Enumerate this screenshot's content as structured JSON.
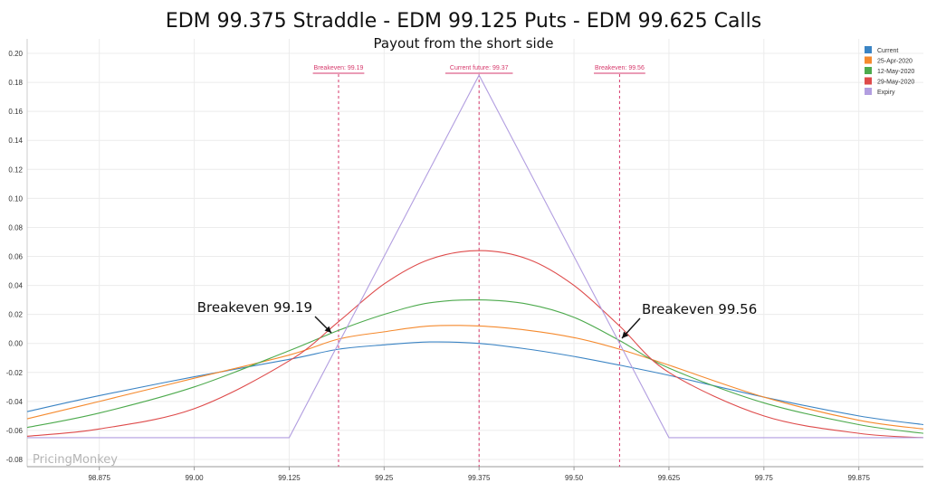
{
  "chart_data": {
    "type": "line",
    "title": "EDM 99.375 Straddle - EDM 99.125 Puts - EDM 99.625 Calls",
    "subtitle": "Payout from the short side",
    "xlim": [
      98.78,
      99.96
    ],
    "ylim": [
      -0.085,
      0.21
    ],
    "x_ticks": [
      "98.875",
      "99.00",
      "99.125",
      "99.25",
      "99.375",
      "99.50",
      "99.625",
      "99.75",
      "99.875"
    ],
    "y_ticks": [
      "0.20",
      "0.18",
      "0.16",
      "0.14",
      "0.12",
      "0.10",
      "0.08",
      "0.06",
      "0.04",
      "0.02",
      "0.00",
      "-0.02",
      "-0.04",
      "-0.06",
      "-0.08"
    ],
    "grid": true,
    "legend_position": "top-right",
    "series": [
      {
        "name": "Current",
        "color": "#3b84c4",
        "x": [
          98.78,
          98.875,
          99.0,
          99.125,
          99.19,
          99.25,
          99.31,
          99.375,
          99.44,
          99.5,
          99.56,
          99.625,
          99.75,
          99.875,
          99.96
        ],
        "y": [
          -0.047,
          -0.036,
          -0.023,
          -0.011,
          -0.004,
          -0.001,
          0.001,
          0.0,
          -0.004,
          -0.009,
          -0.015,
          -0.022,
          -0.037,
          -0.05,
          -0.056
        ]
      },
      {
        "name": "25-Apr-2020",
        "color": "#f58a2e",
        "x": [
          98.78,
          98.875,
          99.0,
          99.125,
          99.19,
          99.25,
          99.31,
          99.375,
          99.44,
          99.5,
          99.56,
          99.625,
          99.75,
          99.875,
          99.96
        ],
        "y": [
          -0.052,
          -0.04,
          -0.024,
          -0.008,
          0.003,
          0.008,
          0.012,
          0.012,
          0.009,
          0.004,
          -0.004,
          -0.015,
          -0.037,
          -0.053,
          -0.059
        ]
      },
      {
        "name": "12-May-2020",
        "color": "#4daa4d",
        "x": [
          98.78,
          98.875,
          99.0,
          99.125,
          99.19,
          99.25,
          99.31,
          99.375,
          99.44,
          99.5,
          99.56,
          99.625,
          99.75,
          99.875,
          99.96
        ],
        "y": [
          -0.058,
          -0.048,
          -0.03,
          -0.005,
          0.009,
          0.02,
          0.028,
          0.03,
          0.027,
          0.018,
          0.002,
          -0.017,
          -0.041,
          -0.056,
          -0.062
        ]
      },
      {
        "name": "29-May-2020",
        "color": "#de4a4a",
        "x": [
          98.78,
          98.875,
          99.0,
          99.125,
          99.19,
          99.25,
          99.31,
          99.375,
          99.44,
          99.5,
          99.56,
          99.625,
          99.75,
          99.875,
          99.96
        ],
        "y": [
          -0.064,
          -0.059,
          -0.045,
          -0.012,
          0.015,
          0.041,
          0.058,
          0.064,
          0.058,
          0.04,
          0.012,
          -0.02,
          -0.05,
          -0.062,
          -0.065
        ]
      },
      {
        "name": "Expiry",
        "color": "#b29ee0",
        "x": [
          98.78,
          99.125,
          99.375,
          99.625,
          99.96
        ],
        "y": [
          -0.065,
          -0.065,
          0.185,
          -0.065,
          -0.065
        ]
      }
    ],
    "vertical_lines": [
      {
        "label": "Breakeven: 99.19",
        "x": 99.19,
        "color": "#d63a6c"
      },
      {
        "label": "Current future: 99.37",
        "x": 99.375,
        "color": "#d63a6c"
      },
      {
        "label": "Breakeven: 99.56",
        "x": 99.56,
        "color": "#d63a6c"
      }
    ],
    "annotations": [
      {
        "text": "Breakeven 99.19",
        "x": 99.19,
        "y": 0.003
      },
      {
        "text": "Breakeven 99.56",
        "x": 99.56,
        "y": 0.0
      }
    ],
    "watermark": "PricingMonkey"
  }
}
